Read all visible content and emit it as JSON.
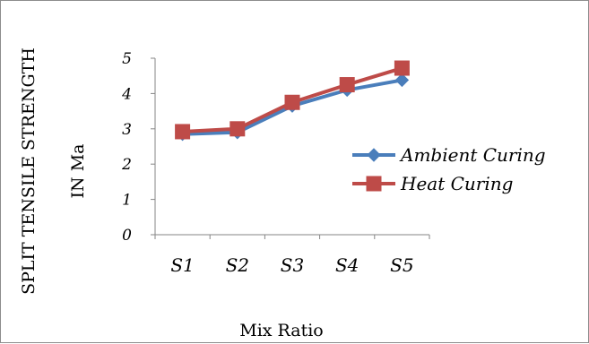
{
  "chart_data": {
    "type": "line",
    "categories": [
      "S1",
      "S2",
      "S3",
      "S4",
      "S5"
    ],
    "series": [
      {
        "name": "Ambient Curing",
        "values": [
          2.85,
          2.9,
          3.65,
          4.1,
          4.38
        ],
        "color": "#4A7EBB",
        "marker": "diamond"
      },
      {
        "name": "Heat Curing",
        "values": [
          2.92,
          3.0,
          3.75,
          4.25,
          4.72
        ],
        "color": "#BE4B48",
        "marker": "square"
      }
    ],
    "yticks": [
      "0",
      "1",
      "2",
      "3",
      "4",
      "5"
    ],
    "ylim": [
      0,
      5
    ],
    "xlabel": "Mix Ratio",
    "ylabel_line1": "SPLIT TENSILE STRENGTH",
    "ylabel_line2": "IN Ma",
    "legend_position": "right",
    "grid": false
  }
}
